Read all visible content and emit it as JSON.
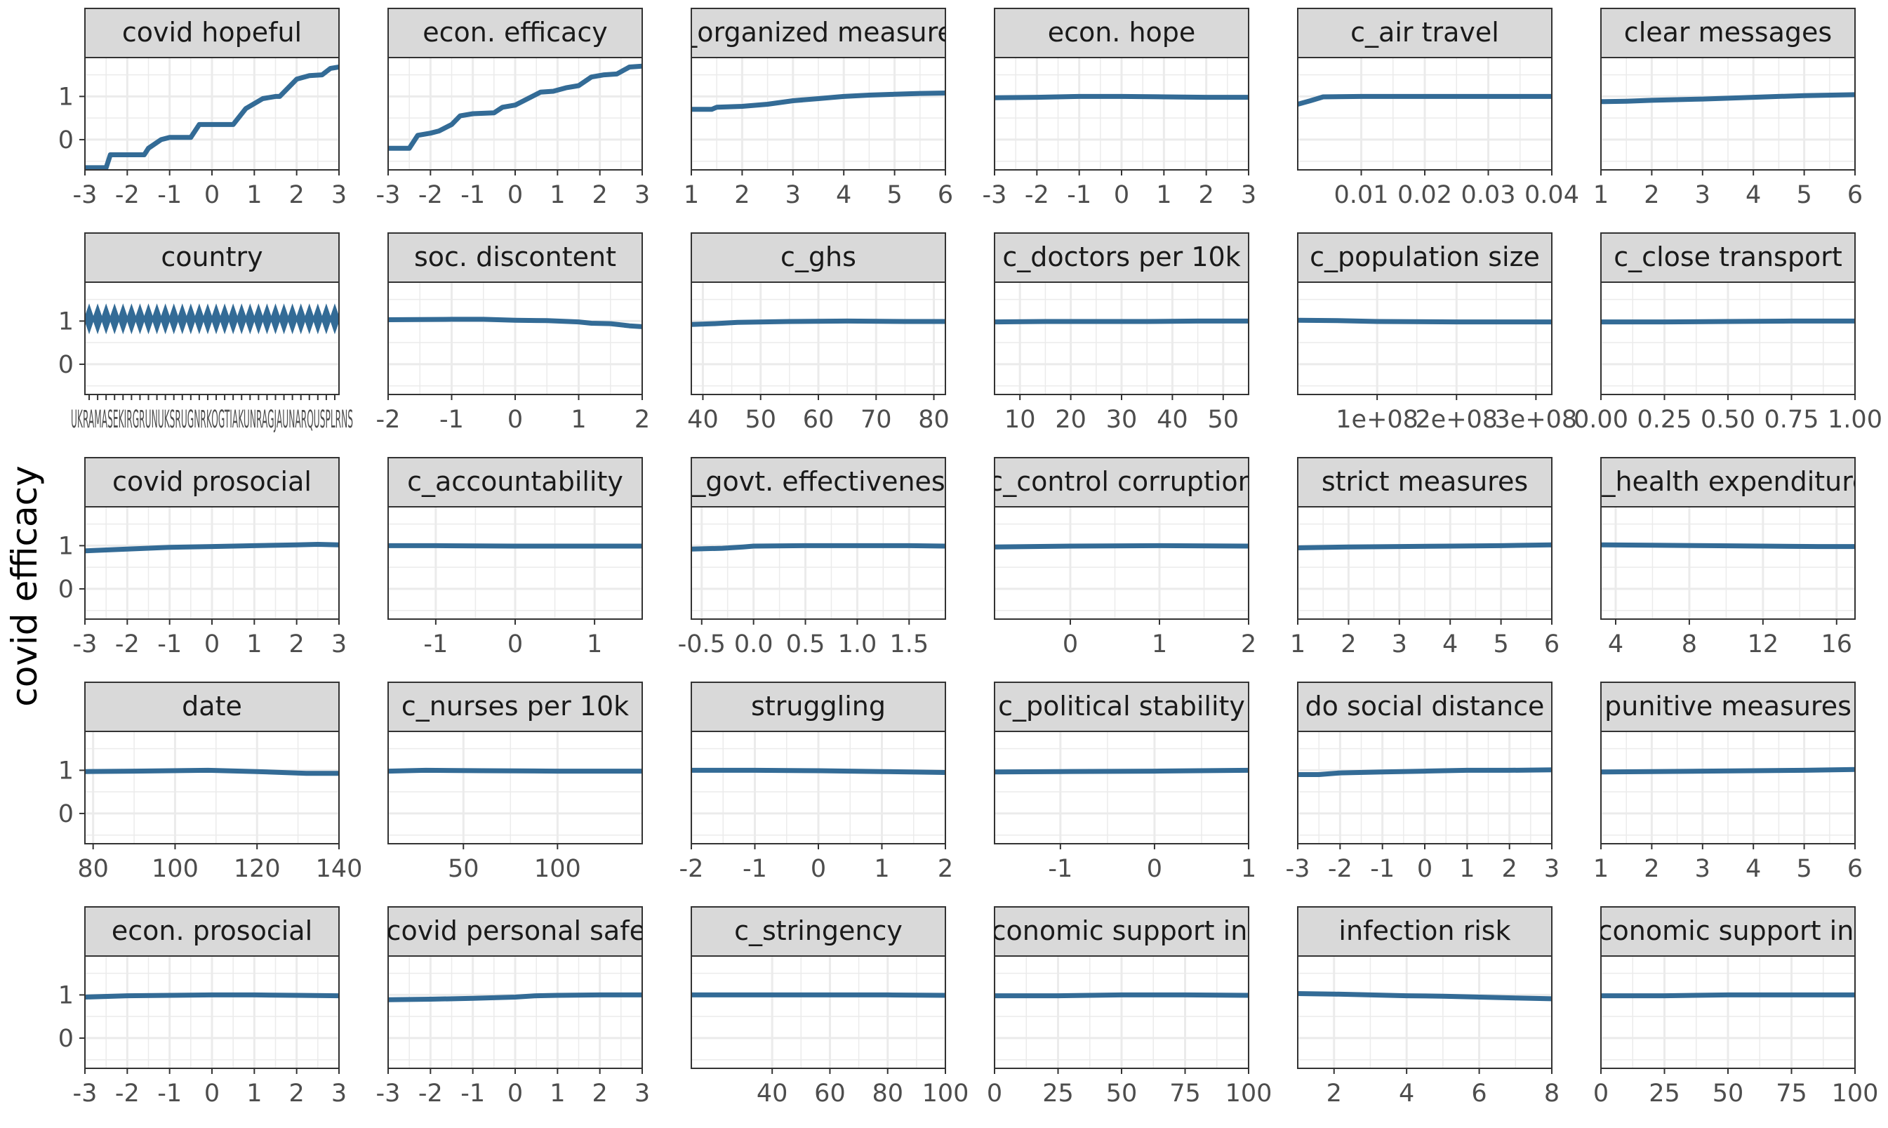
{
  "colors": {
    "line": "#336b96",
    "strip_fill": "#d9d9d9",
    "panel_border": "#333333",
    "grid": "#ebebeb",
    "text": "#4d4d4d"
  },
  "chart_data": {
    "type": "line",
    "ylabel": "covid efficacy",
    "ylim": [
      -0.7,
      1.9
    ],
    "yticks": [
      0,
      1
    ],
    "grid": true,
    "legend": "none",
    "layout": {
      "columns": 6,
      "rows": 5
    },
    "panels": [
      {
        "title": "covid hopeful",
        "xlim": [
          -3,
          3
        ],
        "xticks": [
          -3,
          -2,
          -1,
          0,
          1,
          2,
          3
        ],
        "xtick_labels": [
          "-3",
          "-2",
          "-1",
          "0",
          "1",
          "2",
          "3"
        ],
        "x": [
          -3,
          -2.5,
          -2.4,
          -1.6,
          -1.5,
          -1.2,
          -1,
          -0.5,
          -0.3,
          0.5,
          0.8,
          1.2,
          1.5,
          1.6,
          2,
          2.3,
          2.6,
          2.8,
          3
        ],
        "y": [
          -0.65,
          -0.65,
          -0.35,
          -0.35,
          -0.2,
          0,
          0.05,
          0.05,
          0.35,
          0.35,
          0.72,
          0.95,
          1.0,
          1.0,
          1.4,
          1.48,
          1.5,
          1.65,
          1.68
        ]
      },
      {
        "title": "econ. efficacy",
        "xlim": [
          -3,
          3
        ],
        "xticks": [
          -3,
          -2,
          -1,
          0,
          1,
          2,
          3
        ],
        "xtick_labels": [
          "-3",
          "-2",
          "-1",
          "0",
          "1",
          "2",
          "3"
        ],
        "x": [
          -3,
          -2.5,
          -2.3,
          -2,
          -1.8,
          -1.5,
          -1.3,
          -1,
          -0.5,
          -0.3,
          0,
          0.3,
          0.6,
          0.9,
          1.2,
          1.5,
          1.8,
          2.1,
          2.4,
          2.7,
          3
        ],
        "y": [
          -0.2,
          -0.2,
          0.1,
          0.15,
          0.2,
          0.35,
          0.55,
          0.6,
          0.62,
          0.75,
          0.8,
          0.95,
          1.1,
          1.12,
          1.2,
          1.25,
          1.45,
          1.5,
          1.52,
          1.68,
          1.7
        ]
      },
      {
        "title": "c_organized measures",
        "xlim": [
          1,
          6
        ],
        "xticks": [
          1,
          2,
          3,
          4,
          5,
          6
        ],
        "xtick_labels": [
          "1",
          "2",
          "3",
          "4",
          "5",
          "6"
        ],
        "x": [
          1,
          1.4,
          1.5,
          2,
          2.5,
          3,
          3.5,
          4,
          4.5,
          5,
          5.5,
          6
        ],
        "y": [
          0.7,
          0.7,
          0.75,
          0.77,
          0.82,
          0.9,
          0.95,
          1.0,
          1.03,
          1.05,
          1.07,
          1.08
        ]
      },
      {
        "title": "econ. hope",
        "xlim": [
          -3,
          3
        ],
        "xticks": [
          -3,
          -2,
          -1,
          0,
          1,
          2,
          3
        ],
        "xtick_labels": [
          "-3",
          "-2",
          "-1",
          "0",
          "1",
          "2",
          "3"
        ],
        "x": [
          -3,
          -2,
          -1,
          0,
          1,
          2,
          3
        ],
        "y": [
          0.97,
          0.98,
          1.0,
          1.0,
          0.99,
          0.98,
          0.98
        ]
      },
      {
        "title": "c_air travel",
        "xlim": [
          0,
          0.04
        ],
        "xticks": [
          0.01,
          0.02,
          0.03,
          0.04
        ],
        "xtick_labels": [
          "0.01",
          "0.02",
          "0.03",
          "0.04"
        ],
        "x": [
          0,
          0.002,
          0.004,
          0.01,
          0.02,
          0.03,
          0.04
        ],
        "y": [
          0.82,
          0.9,
          0.99,
          1.0,
          1.0,
          1.0,
          1.0
        ]
      },
      {
        "title": "clear messages",
        "xlim": [
          1,
          6
        ],
        "xticks": [
          1,
          2,
          3,
          4,
          5,
          6
        ],
        "xtick_labels": [
          "1",
          "2",
          "3",
          "4",
          "5",
          "6"
        ],
        "x": [
          1,
          1.5,
          2,
          3,
          4,
          5,
          6
        ],
        "y": [
          0.88,
          0.89,
          0.91,
          0.94,
          0.98,
          1.02,
          1.04
        ]
      },
      {
        "title": "country",
        "xlim": [
          0,
          30
        ],
        "xticks": [],
        "xtick_labels": [
          "UKRAMASEKIRGRUNUKSRUGNRKOGTIAKUNRAGJAUNARQUSPLRNS"
        ],
        "diamonds": 30,
        "y": [
          1.05
        ]
      },
      {
        "title": "soc. discontent",
        "xlim": [
          -2,
          2
        ],
        "xticks": [
          -2,
          -1,
          0,
          1,
          2
        ],
        "xtick_labels": [
          "-2",
          "-1",
          "0",
          "1",
          "2"
        ],
        "x": [
          -2,
          -1,
          -0.5,
          0,
          0.5,
          1,
          1.2,
          1.5,
          1.8,
          2
        ],
        "y": [
          1.03,
          1.04,
          1.04,
          1.02,
          1.01,
          0.98,
          0.95,
          0.94,
          0.89,
          0.87
        ]
      },
      {
        "title": "c_ghs",
        "xlim": [
          38,
          82
        ],
        "xticks": [
          40,
          50,
          60,
          70,
          80
        ],
        "xtick_labels": [
          "40",
          "50",
          "60",
          "70",
          "80"
        ],
        "x": [
          38,
          42,
          46,
          55,
          65,
          75,
          82
        ],
        "y": [
          0.92,
          0.94,
          0.97,
          0.99,
          1.0,
          0.99,
          0.99
        ]
      },
      {
        "title": "c_doctors per 10k",
        "xlim": [
          5,
          55
        ],
        "xticks": [
          10,
          20,
          30,
          40,
          50
        ],
        "xtick_labels": [
          "10",
          "20",
          "30",
          "40",
          "50"
        ],
        "x": [
          5,
          15,
          25,
          35,
          45,
          55
        ],
        "y": [
          0.98,
          0.99,
          0.99,
          0.99,
          1.0,
          1.0
        ]
      },
      {
        "title": "c_population size",
        "xlim": [
          0,
          320000000
        ],
        "xticks": [
          100000000,
          200000000,
          300000000
        ],
        "xtick_labels": [
          "1e+08",
          "2e+08",
          "3e+08"
        ],
        "x": [
          0,
          50000000,
          100000000,
          200000000,
          320000000
        ],
        "y": [
          1.02,
          1.01,
          0.99,
          0.98,
          0.98
        ]
      },
      {
        "title": "c_close transport",
        "xlim": [
          0,
          1
        ],
        "xticks": [
          0,
          0.25,
          0.5,
          0.75,
          1
        ],
        "xtick_labels": [
          "0.00",
          "0.25",
          "0.50",
          "0.75",
          "1.00"
        ],
        "x": [
          0,
          0.25,
          0.5,
          0.75,
          1
        ],
        "y": [
          0.98,
          0.98,
          0.99,
          1.0,
          1.0
        ]
      },
      {
        "title": "covid prosocial",
        "xlim": [
          -3,
          3
        ],
        "xticks": [
          -3,
          -2,
          -1,
          0,
          1,
          2,
          3
        ],
        "xtick_labels": [
          "-3",
          "-2",
          "-1",
          "0",
          "1",
          "2",
          "3"
        ],
        "x": [
          -3,
          -2,
          -1,
          0,
          1,
          2,
          2.5,
          3
        ],
        "y": [
          0.88,
          0.92,
          0.96,
          0.98,
          1.0,
          1.02,
          1.03,
          1.02
        ]
      },
      {
        "title": "c_accountability",
        "xlim": [
          -1.6,
          1.6
        ],
        "xticks": [
          -1,
          0,
          1
        ],
        "xtick_labels": [
          "-1",
          "0",
          "1"
        ],
        "x": [
          -1.6,
          -1,
          0,
          1,
          1.6
        ],
        "y": [
          1.0,
          1.0,
          0.99,
          0.99,
          0.99
        ]
      },
      {
        "title": "c_govt. effectiveness",
        "xlim": [
          -0.6,
          1.85
        ],
        "xticks": [
          -0.5,
          0,
          0.5,
          1,
          1.5
        ],
        "xtick_labels": [
          "-0.5",
          "0.0",
          "0.5",
          "1.0",
          "1.5"
        ],
        "x": [
          -0.6,
          -0.3,
          -0.1,
          0,
          0.5,
          1,
          1.5,
          1.85
        ],
        "y": [
          0.92,
          0.94,
          0.97,
          0.99,
          1.0,
          1.0,
          1.0,
          0.99
        ]
      },
      {
        "title": "c_control corruption",
        "xlim": [
          -0.85,
          2
        ],
        "xticks": [
          0,
          1,
          2
        ],
        "xtick_labels": [
          "0",
          "1",
          "2"
        ],
        "x": [
          -0.85,
          0,
          1,
          2
        ],
        "y": [
          0.97,
          0.99,
          1.0,
          0.99
        ]
      },
      {
        "title": "strict measures",
        "xlim": [
          1,
          6
        ],
        "xticks": [
          1,
          2,
          3,
          4,
          5,
          6
        ],
        "xtick_labels": [
          "1",
          "2",
          "3",
          "4",
          "5",
          "6"
        ],
        "x": [
          1,
          2,
          3,
          4,
          5,
          6
        ],
        "y": [
          0.95,
          0.97,
          0.98,
          0.99,
          1.0,
          1.02
        ]
      },
      {
        "title": "c_health expenditure",
        "xlim": [
          3.2,
          17
        ],
        "xticks": [
          4,
          8,
          12,
          16
        ],
        "xtick_labels": [
          "4",
          "8",
          "12",
          "16"
        ],
        "x": [
          3.2,
          6,
          9,
          12,
          15,
          17
        ],
        "y": [
          1.02,
          1.01,
          1.0,
          0.99,
          0.98,
          0.98
        ]
      },
      {
        "title": "date",
        "xlim": [
          78,
          140
        ],
        "xticks": [
          80,
          100,
          120,
          140
        ],
        "xtick_labels": [
          "80",
          "100",
          "120",
          "140"
        ],
        "x": [
          78,
          90,
          108,
          120,
          132,
          140
        ],
        "y": [
          0.97,
          0.98,
          1.0,
          0.97,
          0.93,
          0.93
        ]
      },
      {
        "title": "c_nurses per 10k",
        "xlim": [
          10,
          145
        ],
        "xticks": [
          50,
          100
        ],
        "xtick_labels": [
          "50",
          "100"
        ],
        "x": [
          10,
          30,
          60,
          100,
          145
        ],
        "y": [
          0.98,
          1.0,
          0.99,
          0.98,
          0.98
        ]
      },
      {
        "title": "struggling",
        "xlim": [
          -2,
          2
        ],
        "xticks": [
          -2,
          -1,
          0,
          1,
          2
        ],
        "xtick_labels": [
          "-2",
          "-1",
          "0",
          "1",
          "2"
        ],
        "x": [
          -2,
          -1,
          0,
          1,
          2
        ],
        "y": [
          1.0,
          1.0,
          0.99,
          0.97,
          0.95
        ]
      },
      {
        "title": "c_political stability",
        "xlim": [
          -1.7,
          1
        ],
        "xticks": [
          -1,
          0,
          1
        ],
        "xtick_labels": [
          "-1",
          "0",
          "1"
        ],
        "x": [
          -1.7,
          -1,
          0,
          1
        ],
        "y": [
          0.96,
          0.97,
          0.98,
          1.0
        ]
      },
      {
        "title": "do social distance",
        "xlim": [
          -3,
          3
        ],
        "xticks": [
          -3,
          -2,
          -1,
          0,
          1,
          2,
          3
        ],
        "xtick_labels": [
          "-3",
          "-2",
          "-1",
          "0",
          "1",
          "2",
          "3"
        ],
        "x": [
          -3,
          -2.5,
          -2,
          -1,
          0,
          1,
          2,
          3
        ],
        "y": [
          0.9,
          0.9,
          0.94,
          0.96,
          0.98,
          1.0,
          1.0,
          1.01
        ]
      },
      {
        "title": "punitive measures",
        "xlim": [
          1,
          6
        ],
        "xticks": [
          1,
          2,
          3,
          4,
          5,
          6
        ],
        "xtick_labels": [
          "1",
          "2",
          "3",
          "4",
          "5",
          "6"
        ],
        "x": [
          1,
          2,
          3,
          4,
          5,
          6
        ],
        "y": [
          0.96,
          0.97,
          0.98,
          0.99,
          1.0,
          1.02
        ]
      },
      {
        "title": "econ. prosocial",
        "xlim": [
          -3,
          3
        ],
        "xticks": [
          -3,
          -2,
          -1,
          0,
          1,
          2,
          3
        ],
        "xtick_labels": [
          "-3",
          "-2",
          "-1",
          "0",
          "1",
          "2",
          "3"
        ],
        "x": [
          -3,
          -2,
          -1,
          0,
          1,
          2,
          3
        ],
        "y": [
          0.95,
          0.98,
          0.99,
          1.0,
          1.0,
          0.99,
          0.98
        ]
      },
      {
        "title": "c_covid personal safety",
        "xlim": [
          -3,
          3
        ],
        "xticks": [
          -3,
          -2,
          -1,
          0,
          1,
          2,
          3
        ],
        "xtick_labels": [
          "-3",
          "-2",
          "-1",
          "0",
          "1",
          "2",
          "3"
        ],
        "x": [
          -3,
          -2,
          -1,
          0,
          0.5,
          1,
          2,
          3
        ],
        "y": [
          0.89,
          0.9,
          0.92,
          0.95,
          0.98,
          0.99,
          1.0,
          1.0
        ]
      },
      {
        "title": "c_stringency",
        "xlim": [
          12,
          100
        ],
        "xticks": [
          40,
          60,
          80,
          100
        ],
        "xtick_labels": [
          "40",
          "60",
          "80",
          "100"
        ],
        "x": [
          12,
          40,
          60,
          80,
          100
        ],
        "y": [
          1.0,
          1.0,
          1.0,
          1.0,
          0.99
        ]
      },
      {
        "title": "c_economic support index",
        "xlim": [
          0,
          100
        ],
        "xticks": [
          0,
          25,
          50,
          75,
          100
        ],
        "xtick_labels": [
          "0",
          "25",
          "50",
          "75",
          "100"
        ],
        "x": [
          0,
          25,
          50,
          75,
          100
        ],
        "y": [
          0.98,
          0.98,
          1.0,
          1.0,
          0.99
        ]
      },
      {
        "title": "infection risk",
        "xlim": [
          1,
          8
        ],
        "xticks": [
          2,
          4,
          6,
          8
        ],
        "xtick_labels": [
          "2",
          "4",
          "6",
          "8"
        ],
        "x": [
          1,
          2,
          3,
          4,
          5,
          6,
          7,
          8
        ],
        "y": [
          1.03,
          1.02,
          1.0,
          0.98,
          0.97,
          0.95,
          0.93,
          0.91
        ]
      },
      {
        "title": "c_economic support index",
        "xlim": [
          0,
          100
        ],
        "xticks": [
          0,
          25,
          50,
          75,
          100
        ],
        "xtick_labels": [
          "0",
          "25",
          "50",
          "75",
          "100"
        ],
        "x": [
          0,
          25,
          50,
          75,
          100
        ],
        "y": [
          0.98,
          0.98,
          1.0,
          1.0,
          1.0
        ]
      }
    ]
  }
}
